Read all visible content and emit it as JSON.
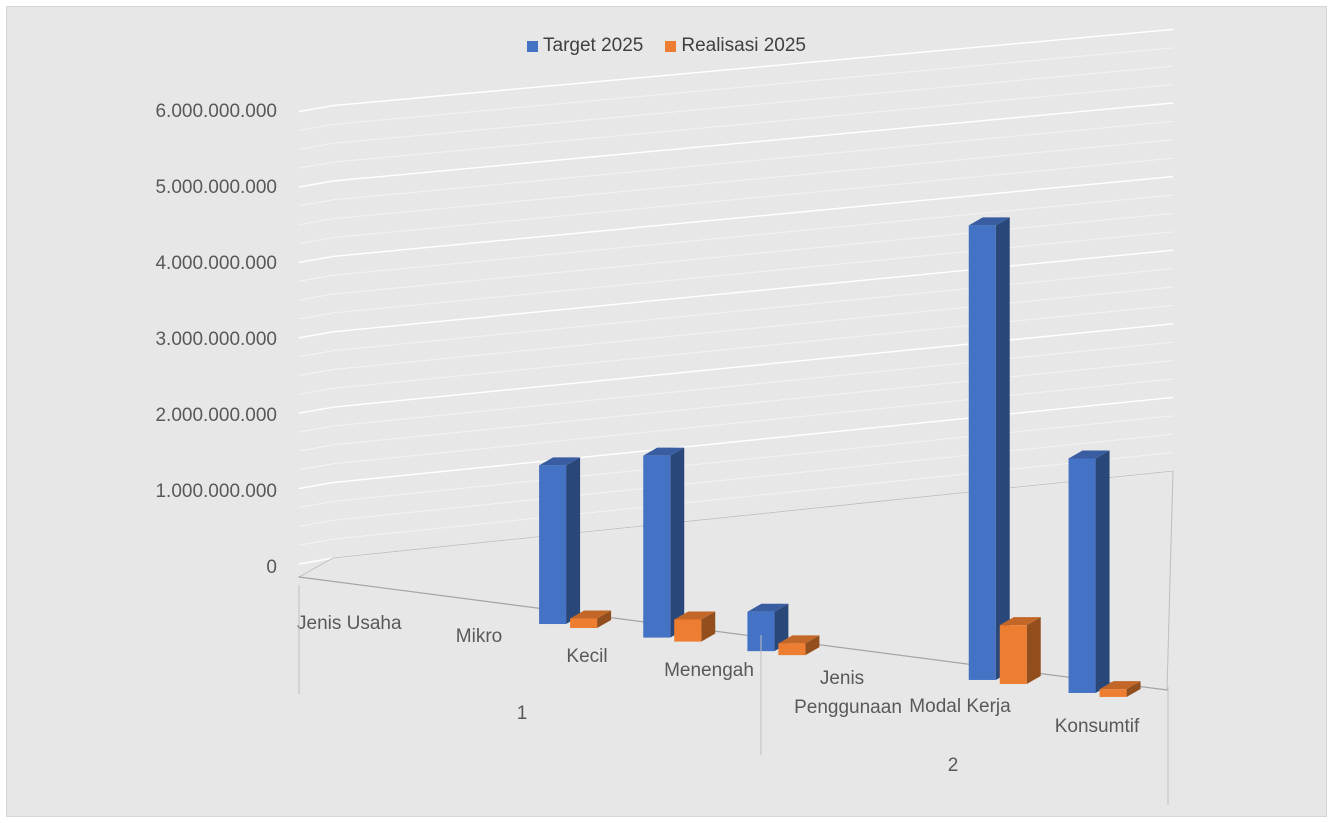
{
  "chart_data": {
    "type": "bar",
    "title": "",
    "ylim": [
      0,
      6000000000
    ],
    "y_ticks": [
      "0",
      "1.000.000.000",
      "2.000.000.000",
      "3.000.000.000",
      "4.000.000.000",
      "5.000.000.000",
      "6.000.000.000"
    ],
    "categories": [
      "Jenis Usaha",
      "Mikro",
      "Kecil",
      "Menengah",
      "Jenis Penggunaan",
      "Modal Kerja",
      "Konsumtif"
    ],
    "groups": [
      {
        "label": "1",
        "categories": [
          "Jenis Usaha",
          "Mikro",
          "Kecil",
          "Menengah"
        ]
      },
      {
        "label": "2",
        "categories": [
          "Jenis Penggunaan",
          "Modal Kerja",
          "Konsumtif"
        ]
      }
    ],
    "series": [
      {
        "name": "Target 2025",
        "color": "#4472c4",
        "values": [
          null,
          2000000000,
          2300000000,
          500000000,
          null,
          5800000000,
          3000000000
        ]
      },
      {
        "name": "Realisasi 2025",
        "color": "#ed7d31",
        "values": [
          null,
          120000000,
          280000000,
          150000000,
          null,
          750000000,
          100000000
        ]
      }
    ],
    "legend_position": "top",
    "grid": true
  }
}
